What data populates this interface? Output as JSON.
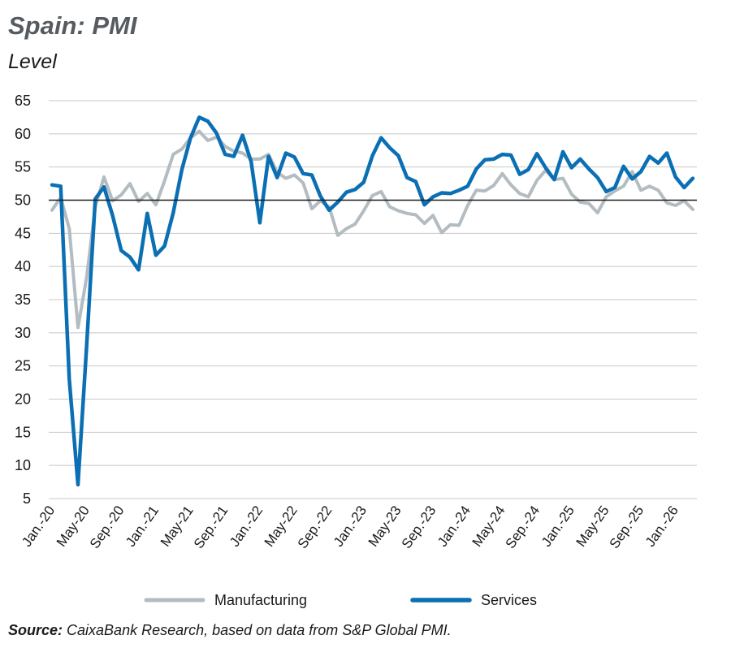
{
  "header": {
    "title": "Spain: PMI",
    "subtitle": "Level"
  },
  "source": {
    "label": "Source:",
    "text": " CaixaBank Research, based on data from S&P Global PMI."
  },
  "colors": {
    "manufacturing": "#b3bcc1",
    "services": "#0a6fb3",
    "grid": "#c8c8c8",
    "refline": "#1a1a1a"
  },
  "chart_data": {
    "type": "line",
    "title": "Spain: PMI",
    "ylabel": "Level",
    "ylim": [
      5,
      65
    ],
    "yticks": [
      5,
      10,
      15,
      20,
      25,
      30,
      35,
      40,
      45,
      50,
      55,
      60,
      65
    ],
    "reference_line": 50,
    "grid": true,
    "legend_position": "bottom",
    "x": [
      "Jan.-20",
      "Feb.-20",
      "Mar.-20",
      "Apr.-20",
      "May-20",
      "Jun.-20",
      "Jul.-20",
      "Aug.-20",
      "Sep.-20",
      "Oct.-20",
      "Nov.-20",
      "Dec.-20",
      "Jan.-21",
      "Feb.-21",
      "Mar.-21",
      "Apr.-21",
      "May-21",
      "Jun.-21",
      "Jul.-21",
      "Aug.-21",
      "Sep.-21",
      "Oct.-21",
      "Nov.-21",
      "Dec.-21",
      "Jan.-22",
      "Feb.-22",
      "Mar.-22",
      "Apr.-22",
      "May-22",
      "Jun.-22",
      "Jul.-22",
      "Aug.-22",
      "Sep.-22",
      "Oct.-22",
      "Nov.-22",
      "Dec.-22",
      "Jan.-23",
      "Feb.-23",
      "Mar.-23",
      "Apr.-23",
      "May-23",
      "Jun.-23",
      "Jul.-23",
      "Aug.-23",
      "Sep.-23",
      "Oct.-23",
      "Nov.-23",
      "Dec.-23",
      "Jan.-24",
      "Feb.-24",
      "Mar.-24",
      "Apr.-24",
      "May-24",
      "Jun.-24",
      "Jul.-24",
      "Aug.-24",
      "Sep.-24",
      "Oct.-24",
      "Nov.-24",
      "Dec.-24",
      "Jan.-25",
      "Feb.-25",
      "Mar.-25",
      "Apr.-25",
      "May-25",
      "Jun.-25",
      "Jul.-25",
      "Aug.-25",
      "Sep.-25",
      "Oct.-25",
      "Nov.-25",
      "Dec.-25",
      "Jan.-26",
      "Feb.-26",
      "Mar.-26"
    ],
    "x_tick_labels": [
      "Jan.-20",
      "May-20",
      "Sep.-20",
      "Jan.-21",
      "May-21",
      "Sep.-21",
      "Jan.-22",
      "May-22",
      "Sep.-22",
      "Jan.-23",
      "May-23",
      "Sep.-23",
      "Jan.-24",
      "May-24",
      "Sep.-24",
      "Jan.-25",
      "May-25",
      "Sep.-25",
      "Jan.-26"
    ],
    "series": [
      {
        "name": "Manufacturing",
        "values": [
          48.5,
          50.4,
          45.7,
          30.8,
          38.3,
          49.0,
          53.5,
          49.9,
          50.8,
          52.5,
          49.8,
          51.0,
          49.3,
          52.9,
          56.9,
          57.7,
          59.4,
          60.4,
          59.0,
          59.5,
          58.1,
          57.4,
          57.1,
          56.2,
          56.2,
          56.9,
          54.2,
          53.3,
          53.8,
          52.6,
          48.7,
          49.9,
          49.0,
          44.7,
          45.7,
          46.4,
          48.4,
          50.7,
          51.3,
          49.0,
          48.4,
          48.0,
          47.8,
          46.5,
          47.7,
          45.1,
          46.3,
          46.2,
          49.2,
          51.5,
          51.4,
          52.2,
          54.0,
          52.3,
          51.0,
          50.5,
          53.0,
          54.5,
          53.1,
          53.3,
          50.9,
          49.7,
          49.5,
          48.1,
          50.5,
          51.4,
          52.1,
          54.3,
          51.5,
          52.1,
          51.5,
          49.6,
          49.2,
          49.9,
          48.6
        ]
      },
      {
        "name": "Services",
        "values": [
          52.3,
          52.1,
          23.0,
          7.1,
          27.9,
          50.2,
          52.0,
          47.7,
          42.4,
          41.4,
          39.5,
          48.0,
          41.7,
          43.1,
          48.1,
          54.6,
          59.4,
          62.5,
          61.9,
          60.1,
          56.9,
          56.6,
          59.8,
          55.8,
          46.6,
          56.6,
          53.4,
          57.1,
          56.5,
          54.0,
          53.8,
          50.6,
          48.5,
          49.7,
          51.2,
          51.6,
          52.7,
          56.7,
          59.4,
          57.9,
          56.7,
          53.4,
          52.8,
          49.3,
          50.5,
          51.1,
          51.0,
          51.5,
          52.1,
          54.7,
          56.1,
          56.2,
          56.9,
          56.8,
          53.9,
          54.6,
          57.0,
          54.9,
          53.1,
          57.3,
          54.9,
          56.2,
          54.7,
          53.4,
          51.3,
          51.9,
          55.1,
          53.2,
          54.3,
          56.6,
          55.6,
          57.1,
          53.5,
          51.9,
          53.3
        ]
      }
    ]
  }
}
